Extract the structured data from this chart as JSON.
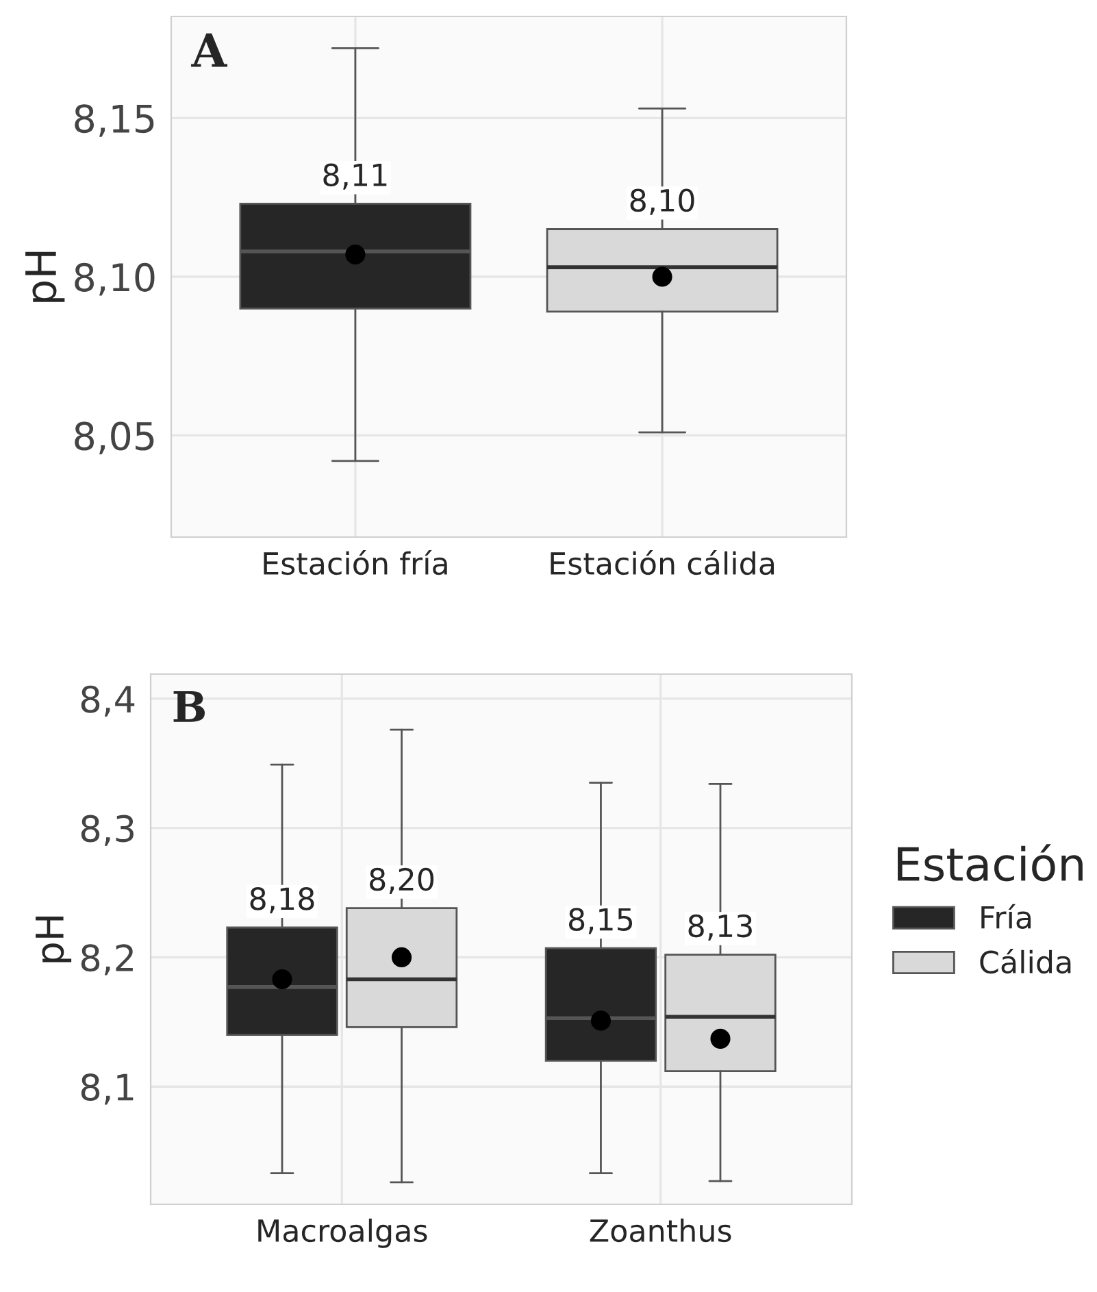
{
  "chart_data": [
    {
      "type": "box",
      "title": "A",
      "ylabel": "pH",
      "categories": [
        "Estación fría",
        "Estación cálida"
      ],
      "colors": [
        "#262626",
        "#d9d9d9"
      ],
      "boxes": [
        {
          "low": 8.042,
          "q1": 8.09,
          "median": 8.108,
          "q3": 8.123,
          "high": 8.172,
          "mean": 8.107
        },
        {
          "low": 8.051,
          "q1": 8.089,
          "median": 8.103,
          "q3": 8.115,
          "high": 8.153,
          "mean": 8.1
        }
      ],
      "value_labels": [
        "8,11",
        "8,10"
      ],
      "ylim": [
        8.018,
        8.182
      ],
      "yticks": [
        {
          "value": 8.05,
          "label": "8,05"
        },
        {
          "value": 8.1,
          "label": "8,10"
        },
        {
          "value": 8.15,
          "label": "8,15"
        }
      ],
      "grid": true,
      "legend": false
    },
    {
      "type": "box",
      "title": "B",
      "ylabel": "pH",
      "legend_title": "Estación",
      "categories": [
        "Macroalgas",
        "Zoanthus"
      ],
      "series": [
        {
          "name": "Fría",
          "color": "#262626",
          "value_labels": [
            "8,18",
            "8,15"
          ],
          "boxes": [
            {
              "low": 8.033,
              "q1": 8.14,
              "median": 8.177,
              "q3": 8.223,
              "high": 8.349,
              "mean": 8.183
            },
            {
              "low": 8.033,
              "q1": 8.12,
              "median": 8.153,
              "q3": 8.207,
              "high": 8.335,
              "mean": 8.151
            }
          ]
        },
        {
          "name": "Cálida",
          "color": "#d9d9d9",
          "value_labels": [
            "8,20",
            "8,13"
          ],
          "boxes": [
            {
              "low": 8.026,
              "q1": 8.146,
              "median": 8.183,
              "q3": 8.238,
              "high": 8.376,
              "mean": 8.2
            },
            {
              "low": 8.027,
              "q1": 8.112,
              "median": 8.154,
              "q3": 8.202,
              "high": 8.334,
              "mean": 8.137
            }
          ]
        }
      ],
      "ylim": [
        8.009,
        8.419
      ],
      "yticks": [
        {
          "value": 8.1,
          "label": "8,1"
        },
        {
          "value": 8.2,
          "label": "8,2"
        },
        {
          "value": 8.3,
          "label": "8,3"
        },
        {
          "value": 8.4,
          "label": "8,4"
        }
      ],
      "grid": true,
      "legend": "right"
    }
  ]
}
